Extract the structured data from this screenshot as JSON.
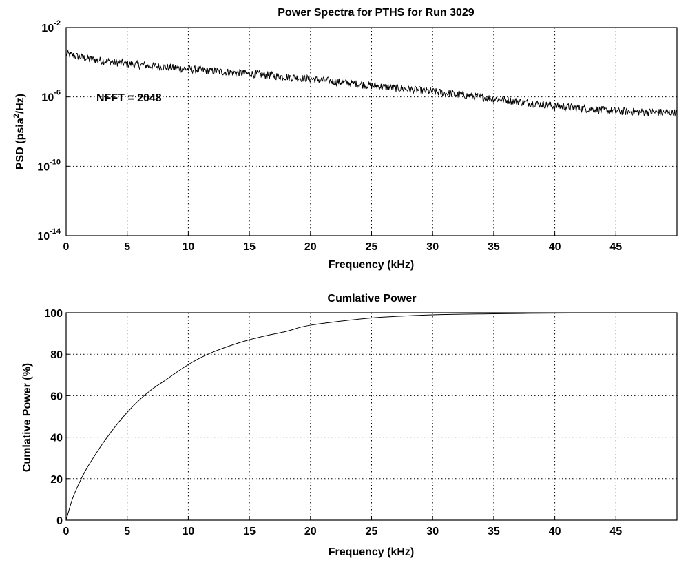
{
  "chart_data": [
    {
      "type": "line",
      "title": "Power Spectra for PTHS for Run 3029",
      "xlabel": "Frequency (kHz)",
      "ylabel_main": "PSD (psia",
      "ylabel_sup": "2",
      "ylabel_tail": "/Hz)",
      "xlim": [
        0,
        50
      ],
      "ylim": [
        1e-14,
        0.01
      ],
      "yscale": "log",
      "grid": true,
      "x_ticks": [
        "0",
        "5",
        "10",
        "15",
        "20",
        "25",
        "30",
        "35",
        "40",
        "45"
      ],
      "y_ticks": [
        {
          "base": "10",
          "exp": "-14"
        },
        {
          "base": "10",
          "exp": "-10"
        },
        {
          "base": "10",
          "exp": "-6"
        },
        {
          "base": "10",
          "exp": "-2"
        }
      ],
      "annotation": "NFFT = 2048",
      "series": [
        {
          "x": [
            0,
            2,
            5,
            10,
            15,
            20,
            25,
            30,
            35,
            40,
            45,
            50
          ],
          "y": [
            0.0003,
            0.00015,
            8e-05,
            4e-05,
            2.2e-05,
            1.1e-05,
            4.5e-06,
            2e-06,
            8e-07,
            3e-07,
            1.5e-07,
            1.2e-07
          ]
        }
      ]
    },
    {
      "type": "line",
      "title": "Cumlative Power",
      "xlabel": "Frequency (kHz)",
      "ylabel": "Cumlative Power (%)",
      "xlim": [
        0,
        50
      ],
      "ylim": [
        0,
        100
      ],
      "grid": true,
      "x_ticks": [
        "0",
        "5",
        "10",
        "15",
        "20",
        "25",
        "30",
        "35",
        "40",
        "45"
      ],
      "y_ticks": [
        "0",
        "20",
        "40",
        "60",
        "80",
        "100"
      ],
      "series": [
        {
          "x": [
            0,
            0.5,
            1,
            1.5,
            2,
            3,
            4,
            5,
            6,
            7,
            8,
            10,
            12,
            15,
            18,
            20,
            25,
            30,
            35,
            40,
            45,
            50
          ],
          "y": [
            0,
            10,
            17,
            23,
            28,
            37,
            45,
            52,
            58,
            63,
            67,
            75,
            81,
            87,
            91,
            94,
            97.5,
            99,
            99.5,
            99.8,
            99.9,
            100
          ]
        }
      ]
    }
  ]
}
